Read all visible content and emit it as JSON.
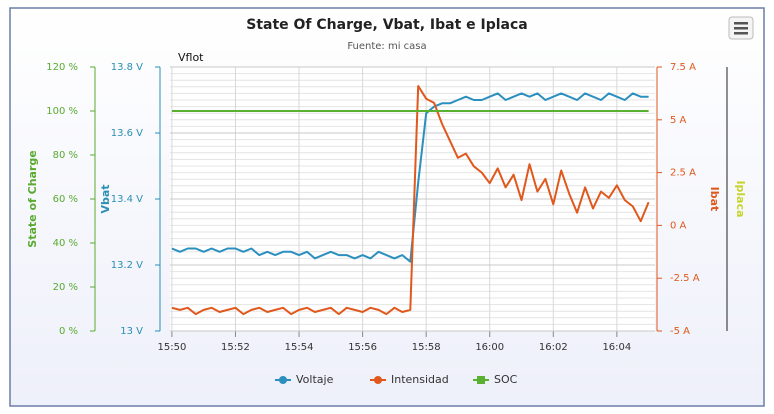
{
  "chart_data": {
    "type": "line",
    "title": "State Of Charge, Vbat, Ibat e Iplaca",
    "subtitle": "Fuente: mi casa",
    "annotation": "Vflot",
    "x": [
      0,
      0.25,
      0.5,
      0.75,
      1,
      1.25,
      1.5,
      1.75,
      2,
      2.25,
      2.5,
      2.75,
      3,
      3.25,
      3.5,
      3.75,
      4,
      4.25,
      4.5,
      4.75,
      5,
      5.25,
      5.5,
      5.75,
      6,
      6.25,
      6.5,
      6.75,
      7,
      7.25,
      7.5,
      7.75,
      8,
      8.25,
      8.5,
      8.75,
      9,
      9.25,
      9.5,
      9.75,
      10,
      10.25,
      10.5,
      10.75,
      11,
      11.25,
      11.5,
      11.75,
      12,
      12.25,
      12.5,
      12.75,
      13,
      13.25,
      13.5,
      13.75,
      14,
      14.25,
      14.5,
      14.75,
      15
    ],
    "xlim": [
      -0.06,
      15.2
    ],
    "xticks": [
      {
        "value": 0,
        "label": "15:50"
      },
      {
        "value": 2,
        "label": "15:52"
      },
      {
        "value": 4,
        "label": "15:54"
      },
      {
        "value": 6,
        "label": "15:56"
      },
      {
        "value": 8,
        "label": "15:58"
      },
      {
        "value": 10,
        "label": "16:00"
      },
      {
        "value": 12,
        "label": "16:02"
      },
      {
        "value": 14,
        "label": "16:04"
      }
    ],
    "axes": {
      "soc": {
        "title": "State of Charge",
        "color": "#5aaa32",
        "lim": [
          0,
          120
        ],
        "ticks": [
          {
            "value": 0,
            "label": "0 %"
          },
          {
            "value": 20,
            "label": "20 %"
          },
          {
            "value": 40,
            "label": "40 %"
          },
          {
            "value": 60,
            "label": "60 %"
          },
          {
            "value": 80,
            "label": "80 %"
          },
          {
            "value": 100,
            "label": "100 %"
          },
          {
            "value": 120,
            "label": "120 %"
          }
        ]
      },
      "vbat": {
        "title": "Vbat",
        "color": "#2b8fb5",
        "lim": [
          13,
          13.8
        ],
        "ticks": [
          {
            "value": 13,
            "label": "13 V"
          },
          {
            "value": 13.2,
            "label": "13.2 V"
          },
          {
            "value": 13.4,
            "label": "13.4 V"
          },
          {
            "value": 13.6,
            "label": "13.6 V"
          },
          {
            "value": 13.8,
            "label": "13.8 V"
          }
        ]
      },
      "ibat": {
        "title": "Ibat",
        "color": "#e0581c",
        "lim": [
          -5,
          7.5
        ],
        "ticks": [
          {
            "value": -5,
            "label": "-5 A"
          },
          {
            "value": -2.5,
            "label": "-2.5 A"
          },
          {
            "value": 0,
            "label": "0 A"
          },
          {
            "value": 2.5,
            "label": "2.5 A"
          },
          {
            "value": 5,
            "label": "5 A"
          },
          {
            "value": 7.5,
            "label": "7.5 A"
          }
        ]
      },
      "iplaca": {
        "title": "Iplaca",
        "color": "#c8d42a"
      }
    },
    "grid": true,
    "legend": "bottom",
    "series": [
      {
        "name": "Voltaje",
        "color": "#2b8fc0",
        "axis": "vbat",
        "values": [
          13.25,
          13.24,
          13.25,
          13.25,
          13.24,
          13.25,
          13.24,
          13.25,
          13.25,
          13.24,
          13.25,
          13.23,
          13.24,
          13.23,
          13.24,
          13.24,
          13.23,
          13.24,
          13.22,
          13.23,
          13.24,
          13.23,
          13.23,
          13.22,
          13.23,
          13.22,
          13.24,
          13.23,
          13.22,
          13.23,
          13.21,
          13.45,
          13.66,
          13.68,
          13.69,
          13.69,
          13.7,
          13.71,
          13.7,
          13.7,
          13.71,
          13.72,
          13.7,
          13.71,
          13.72,
          13.71,
          13.72,
          13.7,
          13.71,
          13.72,
          13.71,
          13.7,
          13.72,
          13.71,
          13.7,
          13.72,
          13.71,
          13.7,
          13.72,
          13.71,
          13.71
        ]
      },
      {
        "name": "Intensidad",
        "color": "#e0581c",
        "axis": "ibat",
        "values": [
          -3.9,
          -4.0,
          -3.9,
          -4.2,
          -4.0,
          -3.9,
          -4.1,
          -4.0,
          -3.9,
          -4.2,
          -4.0,
          -3.9,
          -4.1,
          -4.0,
          -3.9,
          -4.2,
          -4.0,
          -3.9,
          -4.1,
          -4.0,
          -3.9,
          -4.2,
          -3.9,
          -4.0,
          -4.1,
          -3.9,
          -4.0,
          -4.2,
          -3.9,
          -4.1,
          -4.0,
          6.6,
          6.0,
          5.8,
          4.8,
          4.0,
          3.2,
          3.4,
          2.8,
          2.5,
          2.0,
          2.7,
          1.8,
          2.4,
          1.2,
          2.9,
          1.6,
          2.2,
          1.0,
          2.6,
          1.5,
          0.6,
          1.8,
          0.8,
          1.6,
          1.3,
          1.9,
          1.2,
          0.9,
          0.2,
          1.1
        ]
      },
      {
        "name": "SOC",
        "color": "#5ab031",
        "axis": "soc",
        "values": [
          100,
          100,
          100,
          100,
          100,
          100,
          100,
          100,
          100,
          100,
          100,
          100,
          100,
          100,
          100,
          100,
          100,
          100,
          100,
          100,
          100,
          100,
          100,
          100,
          100,
          100,
          100,
          100,
          100,
          100,
          100,
          100,
          100,
          100,
          100,
          100,
          100,
          100,
          100,
          100,
          100,
          100,
          100,
          100,
          100,
          100,
          100,
          100,
          100,
          100,
          100,
          100,
          100,
          100,
          100,
          100,
          100,
          100,
          100,
          100,
          100
        ]
      }
    ]
  }
}
